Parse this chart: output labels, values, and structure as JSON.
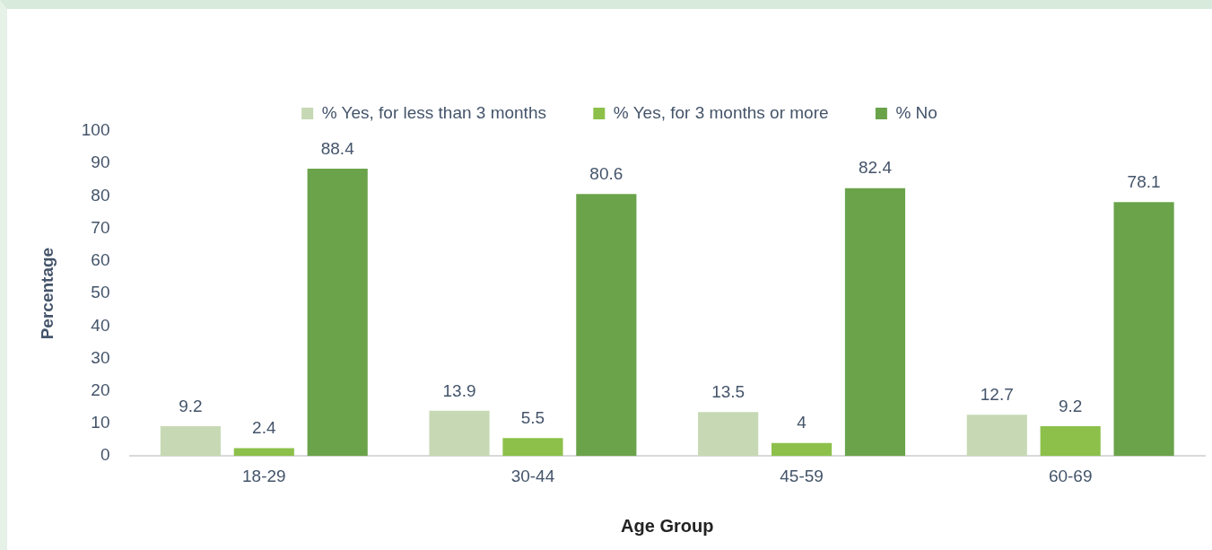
{
  "chart_data": {
    "type": "bar",
    "xlabel": "Age Group",
    "ylabel": "Percentage",
    "categories": [
      "18-29",
      "30-44",
      "45-59",
      "60-69"
    ],
    "series": [
      {
        "name": "% Yes, for less than 3 months",
        "color": "#c6d9b4",
        "values": [
          9.2,
          13.9,
          13.5,
          12.7
        ]
      },
      {
        "name": "% Yes, for 3 months or more",
        "color": "#8cc04a",
        "values": [
          2.4,
          5.5,
          4,
          9.2
        ]
      },
      {
        "name": "% No",
        "color": "#6aa34a",
        "values": [
          88.4,
          80.6,
          82.4,
          78.1
        ]
      }
    ],
    "ylim": [
      0,
      100
    ],
    "yticks": [
      0,
      10,
      20,
      30,
      40,
      50,
      60,
      70,
      80,
      90,
      100
    ],
    "grid": false,
    "legend": "top",
    "data_labels": true
  }
}
